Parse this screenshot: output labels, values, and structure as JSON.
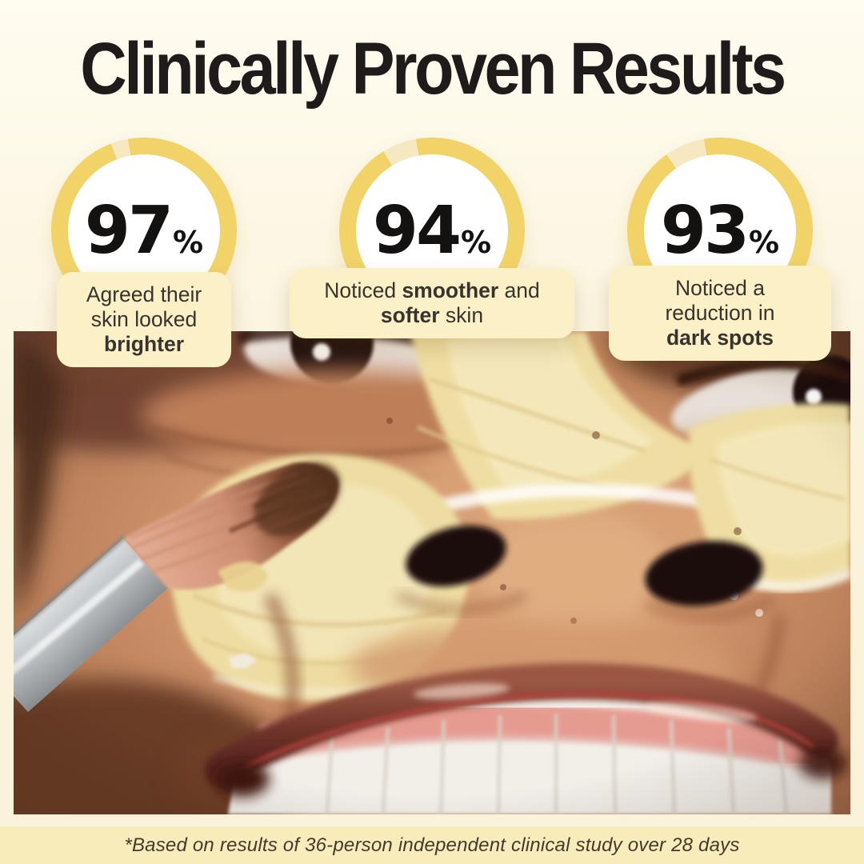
{
  "title": "Clinically Proven Results",
  "stats": [
    {
      "percent": 97,
      "value": "97",
      "unit": "%",
      "parts": [
        {
          "t": "Agreed their\nskin looked\n",
          "b": false
        },
        {
          "t": "brighter",
          "b": true
        }
      ]
    },
    {
      "percent": 94,
      "value": "94",
      "unit": "%",
      "parts": [
        {
          "t": "Noticed ",
          "b": false
        },
        {
          "t": "smoother",
          "b": true
        },
        {
          "t": " and\n",
          "b": false
        },
        {
          "t": "softer",
          "b": true
        },
        {
          "t": " skin",
          "b": false
        }
      ]
    },
    {
      "percent": 93,
      "value": "93",
      "unit": "%",
      "parts": [
        {
          "t": "Noticed a\nreduction in\n",
          "b": false
        },
        {
          "t": "dark spots",
          "b": true
        }
      ]
    }
  ],
  "footnote": "*Based on results of 36-person independent clinical study over 28 days",
  "colors": {
    "ring_yellow": "#F2D368",
    "ring_gap": "#F6E9C2",
    "card_bg": "#FBF0C6",
    "footer_bg": "#F8ECBB",
    "text_dark": "#1F1B1A"
  },
  "chart_data": {
    "type": "donut-progress",
    "unit": "%",
    "series": [
      {
        "label": "Agreed their skin looked brighter",
        "value": 97
      },
      {
        "label": "Noticed smoother and softer skin",
        "value": 94
      },
      {
        "label": "Noticed a reduction in dark spots",
        "value": 93
      }
    ]
  }
}
